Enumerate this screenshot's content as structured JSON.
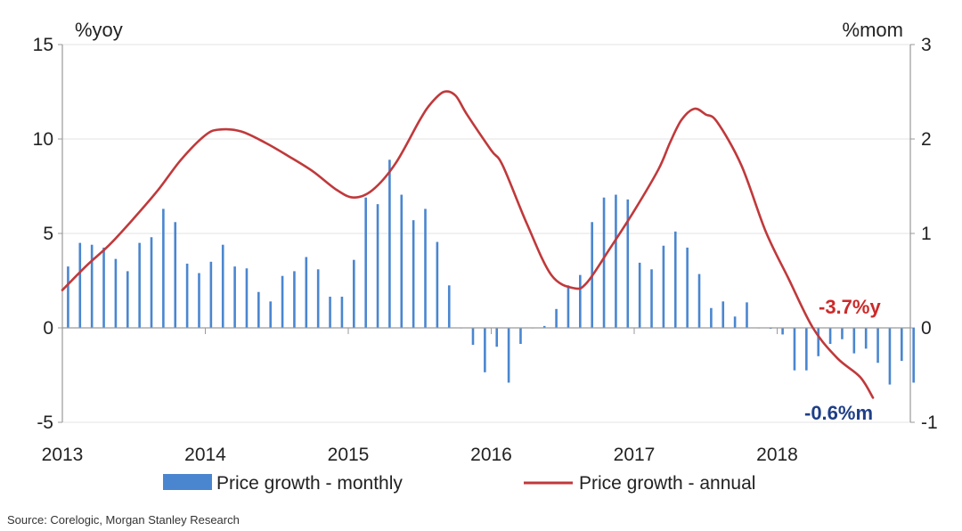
{
  "chart_data": {
    "type": "bar+line",
    "left_axis": {
      "unit_label": "%yoy",
      "range": [
        -5,
        15
      ],
      "ticks": [
        "15",
        "10",
        "5",
        "0",
        "-5"
      ]
    },
    "right_axis": {
      "unit_label": "%mom",
      "range": [
        -1,
        3
      ],
      "ticks": [
        "3",
        "2",
        "1",
        "0",
        "-1"
      ]
    },
    "x_axis": {
      "range": [
        2013,
        2018.9
      ],
      "labels": [
        "2013",
        "2014",
        "2015",
        "2016",
        "2017",
        "2018"
      ]
    },
    "grid": true,
    "legend": {
      "placement": "bottom",
      "items": [
        {
          "name": "Price growth - monthly",
          "kind": "bar"
        },
        {
          "name": "Price growth - annual",
          "kind": "line"
        }
      ]
    },
    "series": [
      {
        "name": "Price growth - monthly",
        "type": "bar",
        "axis": "right",
        "color": "#4a86d0",
        "x_start": 2013.04,
        "x_step": 0.0833,
        "values": [
          0.65,
          0.9,
          0.88,
          0.85,
          0.73,
          0.6,
          0.9,
          0.96,
          1.26,
          1.12,
          0.68,
          0.58,
          0.7,
          0.88,
          0.65,
          0.63,
          0.38,
          0.28,
          0.55,
          0.6,
          0.75,
          0.62,
          0.33,
          0.33,
          0.72,
          1.38,
          1.31,
          1.78,
          1.41,
          1.14,
          1.26,
          0.91,
          0.45,
          0.0,
          -0.18,
          -0.47,
          -0.2,
          -0.58,
          -0.17,
          0.0,
          0.02,
          0.2,
          0.45,
          0.56,
          1.12,
          1.38,
          1.41,
          1.36,
          0.69,
          0.62,
          0.87,
          1.02,
          0.85,
          0.57,
          0.21,
          0.28,
          0.12,
          0.27,
          0.0,
          -0.01,
          -0.07,
          -0.45,
          -0.45,
          -0.3,
          -0.17,
          -0.12,
          -0.27,
          -0.22,
          -0.37,
          -0.6,
          -0.35,
          -0.58
        ]
      },
      {
        "name": "Price growth - annual",
        "type": "line",
        "axis": "left",
        "color": "#c0393b",
        "points": [
          [
            2013.0,
            2.0
          ],
          [
            2013.17,
            3.3
          ],
          [
            2013.33,
            4.4
          ],
          [
            2013.5,
            5.8
          ],
          [
            2013.67,
            7.3
          ],
          [
            2013.83,
            8.9
          ],
          [
            2014.0,
            10.2
          ],
          [
            2014.1,
            10.5
          ],
          [
            2014.25,
            10.4
          ],
          [
            2014.42,
            9.8
          ],
          [
            2014.58,
            9.1
          ],
          [
            2014.75,
            8.3
          ],
          [
            2014.92,
            7.3
          ],
          [
            2015.04,
            6.9
          ],
          [
            2015.17,
            7.3
          ],
          [
            2015.33,
            8.7
          ],
          [
            2015.5,
            11.0
          ],
          [
            2015.58,
            11.9
          ],
          [
            2015.67,
            12.5
          ],
          [
            2015.75,
            12.3
          ],
          [
            2015.83,
            11.3
          ],
          [
            2016.0,
            9.4
          ],
          [
            2016.08,
            8.6
          ],
          [
            2016.25,
            5.5
          ],
          [
            2016.42,
            2.8
          ],
          [
            2016.58,
            2.1
          ],
          [
            2016.67,
            2.4
          ],
          [
            2016.83,
            4.2
          ],
          [
            2017.0,
            6.2
          ],
          [
            2017.17,
            8.4
          ],
          [
            2017.25,
            9.8
          ],
          [
            2017.33,
            11.0
          ],
          [
            2017.42,
            11.6
          ],
          [
            2017.5,
            11.3
          ],
          [
            2017.58,
            10.9
          ],
          [
            2017.75,
            8.6
          ],
          [
            2017.92,
            5.1
          ],
          [
            2018.08,
            2.6
          ],
          [
            2018.25,
            0.0
          ],
          [
            2018.42,
            -1.6
          ],
          [
            2018.58,
            -2.6
          ],
          [
            2018.67,
            -3.7
          ]
        ]
      }
    ],
    "annotations": [
      {
        "text": "-3.7%y",
        "series": "Price growth - annual",
        "color": "#cc2a2a"
      },
      {
        "text": "-0.6%m",
        "series": "Price growth - monthly",
        "color": "#1f3f86"
      }
    ]
  },
  "source_note": "Source: Corelogic, Morgan Stanley Research"
}
